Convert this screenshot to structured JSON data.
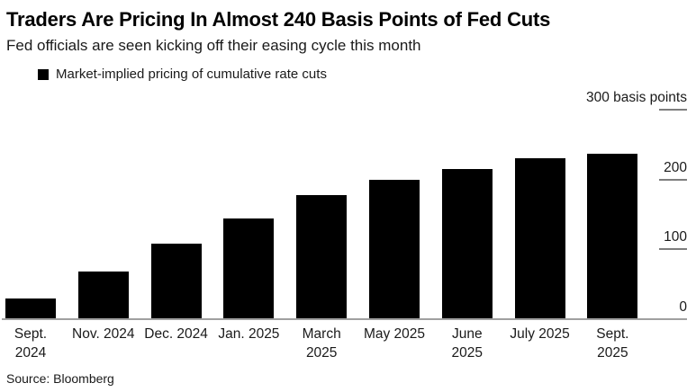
{
  "header": {
    "title": "Traders Are Pricing In Almost 240 Basis Points of Fed Cuts",
    "subtitle": "Fed officials are seen kicking off their easing cycle this month"
  },
  "legend": {
    "label": "Market-implied pricing of cumulative rate cuts",
    "marker": "black-square",
    "marker_color": "#000000"
  },
  "source": "Source: Bloomberg",
  "colors": {
    "background": "#ffffff",
    "bar": "#000000",
    "axis_line": "#a0a0a0",
    "tick_dash": "#7d7d7d",
    "text": "#1a1a1a"
  },
  "y_axis": {
    "unit": "basis points",
    "ticks": [
      {
        "value": 300,
        "label": "300 basis points",
        "dash": true
      },
      {
        "value": 200,
        "label": "200",
        "dash": true
      },
      {
        "value": 100,
        "label": "100",
        "dash": true
      },
      {
        "value": 0,
        "label": "0",
        "dash": false
      }
    ]
  },
  "chart_data": {
    "type": "bar",
    "title": "Traders Are Pricing In Almost 240 Basis Points of Fed Cuts",
    "subtitle": "Fed officials are seen kicking off their easing cycle this month",
    "series_name": "Market-implied pricing of cumulative rate cuts",
    "categories": [
      "Sept. 2024",
      "Nov. 2024",
      "Dec. 2024",
      "Jan. 2025",
      "March 2025",
      "May 2025",
      "June 2025",
      "July 2025",
      "Sept. 2025"
    ],
    "category_lines": [
      [
        "Sept.",
        "2024"
      ],
      [
        "Nov. 2024"
      ],
      [
        "Dec. 2024"
      ],
      [
        "Jan. 2025"
      ],
      [
        "March",
        "2025"
      ],
      [
        "May 2025"
      ],
      [
        "June",
        "2025"
      ],
      [
        "July 2025"
      ],
      [
        "Sept.",
        "2025"
      ]
    ],
    "values": [
      28,
      67,
      107,
      143,
      177,
      198,
      214,
      229,
      236
    ],
    "unit": "basis points",
    "ylabel": "basis points",
    "ylim": [
      0,
      300
    ],
    "yticks": [
      0,
      100,
      200,
      300
    ],
    "bar_color": "#000000",
    "grid": false,
    "legend_position": "top-left",
    "y_axis_side": "right"
  }
}
